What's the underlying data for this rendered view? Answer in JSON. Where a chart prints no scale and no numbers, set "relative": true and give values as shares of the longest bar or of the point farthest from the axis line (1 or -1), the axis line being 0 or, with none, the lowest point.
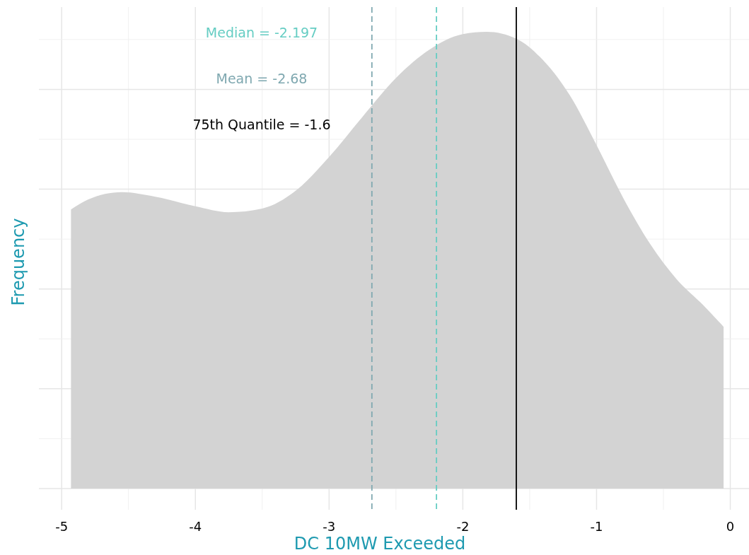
{
  "chart_data": {
    "type": "area",
    "relative": true,
    "xlabel": "DC 10MW Exceeded",
    "ylabel": "Frequency",
    "x": [
      -4.93,
      -4.8,
      -4.55,
      -4.3,
      -4.0,
      -3.75,
      -3.5,
      -3.25,
      -3.0,
      -2.75,
      -2.5,
      -2.25,
      -2.0,
      -1.82,
      -1.6,
      -1.4,
      -1.2,
      -1.0,
      -0.8,
      -0.6,
      -0.4,
      -0.2,
      -0.05
    ],
    "values": [
      0.611,
      0.633,
      0.649,
      0.639,
      0.618,
      0.605,
      0.613,
      0.652,
      0.726,
      0.814,
      0.899,
      0.961,
      0.995,
      1,
      0.985,
      0.938,
      0.861,
      0.752,
      0.636,
      0.536,
      0.458,
      0.401,
      0.354
    ],
    "color": "#d3d3d3",
    "xlim": [
      -5.17,
      0.14
    ],
    "xticks": [
      -5,
      -4,
      -3,
      -2,
      -1,
      0
    ],
    "grid": true,
    "tick_labels": "x",
    "ref_lines": [
      {
        "axis": "x",
        "value": -2.197,
        "label": "Median =  -2.197",
        "color": "#66cdc3",
        "line_style": "dashed"
      },
      {
        "axis": "x",
        "value": -2.68,
        "label": "Mean =  -2.68",
        "color": "#7fa8b0",
        "line_style": "dashed"
      },
      {
        "axis": "x",
        "value": -1.6,
        "label": "75th Quantile =  -1.6",
        "color": "#000000",
        "line_style": "solid"
      }
    ]
  }
}
